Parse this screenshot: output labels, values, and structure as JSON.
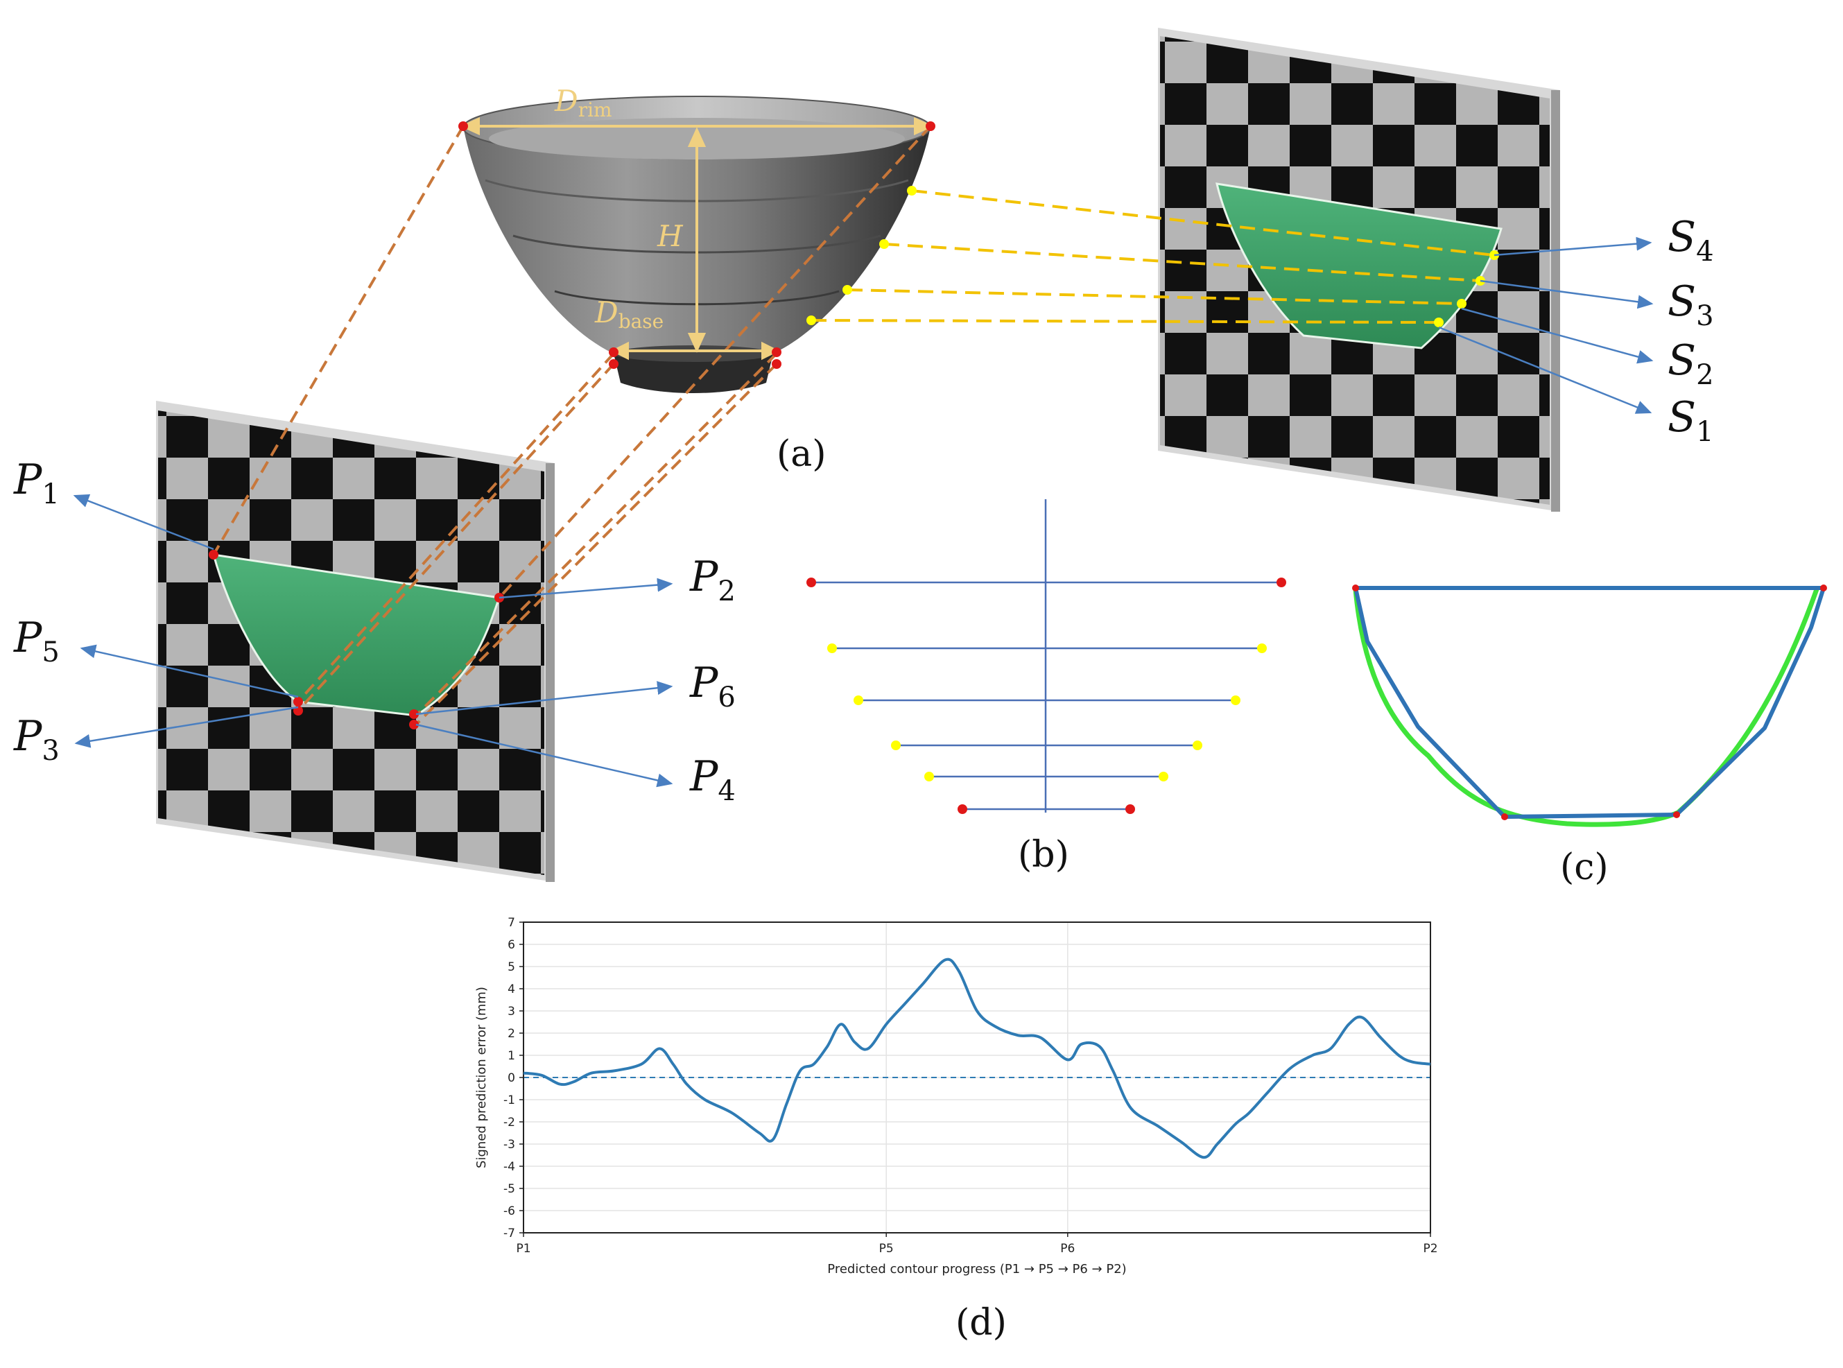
{
  "colors": {
    "blue_arrow": "#4a7fc1",
    "orange_dash": "#c8773a",
    "yellow_dash": "#f2c200",
    "gold_dim": "#f0d080",
    "green_fill": "#3aa366",
    "red_pt": "#e01818",
    "yellow_pt": "#ffff00",
    "contour_blue": "#2f73b5",
    "contour_green": "#3fe33a",
    "error_line": "#2e7bb4"
  },
  "panel_a": {
    "label": "(a)",
    "dim_rim": "D",
    "dim_rim_sub": "rim",
    "dim_height": "H",
    "dim_base": "D",
    "dim_base_sub": "base",
    "left_points": [
      {
        "name": "P",
        "sub": "1"
      },
      {
        "name": "P",
        "sub": "2"
      },
      {
        "name": "P",
        "sub": "5"
      },
      {
        "name": "P",
        "sub": "6"
      },
      {
        "name": "P",
        "sub": "3"
      },
      {
        "name": "P",
        "sub": "4"
      }
    ],
    "right_points": [
      {
        "name": "S",
        "sub": "4"
      },
      {
        "name": "S",
        "sub": "3"
      },
      {
        "name": "S",
        "sub": "2"
      },
      {
        "name": "S",
        "sub": "1"
      }
    ]
  },
  "panel_b": {
    "label": "(b)"
  },
  "panel_c": {
    "label": "(c)"
  },
  "panel_d": {
    "label": "(d)",
    "chart_data": {
      "type": "line",
      "xlabel": "Predicted contour progress (P1 → P5 → P6 → P2)",
      "ylabel": "Signed prediction error (mm)",
      "x_ticks": [
        {
          "pos": 0.0,
          "label": "P1"
        },
        {
          "pos": 0.4,
          "label": "P5"
        },
        {
          "pos": 0.6,
          "label": "P6"
        },
        {
          "pos": 1.0,
          "label": "P2"
        }
      ],
      "ylim": [
        -7,
        7
      ],
      "y_ticks": [
        7,
        6,
        5,
        4,
        3,
        2,
        1,
        0,
        -1,
        -2,
        -3,
        -4,
        -5,
        -6,
        -7
      ],
      "grid": true,
      "reference_line": 0,
      "series": [
        {
          "x": [
            0.0,
            0.02,
            0.04,
            0.055,
            0.075,
            0.1,
            0.13,
            0.15,
            0.165,
            0.18,
            0.2,
            0.23,
            0.26,
            0.275,
            0.29,
            0.305,
            0.32,
            0.335,
            0.35,
            0.365,
            0.38,
            0.4,
            0.42,
            0.44,
            0.465,
            0.48,
            0.5,
            0.52,
            0.545,
            0.57,
            0.6,
            0.615,
            0.635,
            0.65,
            0.67,
            0.7,
            0.725,
            0.75,
            0.765,
            0.785,
            0.8,
            0.82,
            0.845,
            0.87,
            0.89,
            0.91,
            0.925,
            0.945,
            0.965,
            0.98,
            1.0
          ],
          "y": [
            0.2,
            0.1,
            -0.3,
            -0.2,
            0.2,
            0.3,
            0.6,
            1.3,
            0.6,
            -0.3,
            -1.0,
            -1.6,
            -2.5,
            -2.8,
            -1.2,
            0.3,
            0.6,
            1.4,
            2.4,
            1.6,
            1.3,
            2.4,
            3.3,
            4.2,
            5.3,
            4.8,
            3.0,
            2.3,
            1.9,
            1.8,
            0.8,
            1.5,
            1.4,
            0.3,
            -1.4,
            -2.2,
            -2.9,
            -3.6,
            -3.0,
            -2.1,
            -1.6,
            -0.7,
            0.4,
            1.0,
            1.3,
            2.4,
            2.7,
            1.8,
            1.0,
            0.7,
            0.6
          ]
        }
      ]
    }
  }
}
